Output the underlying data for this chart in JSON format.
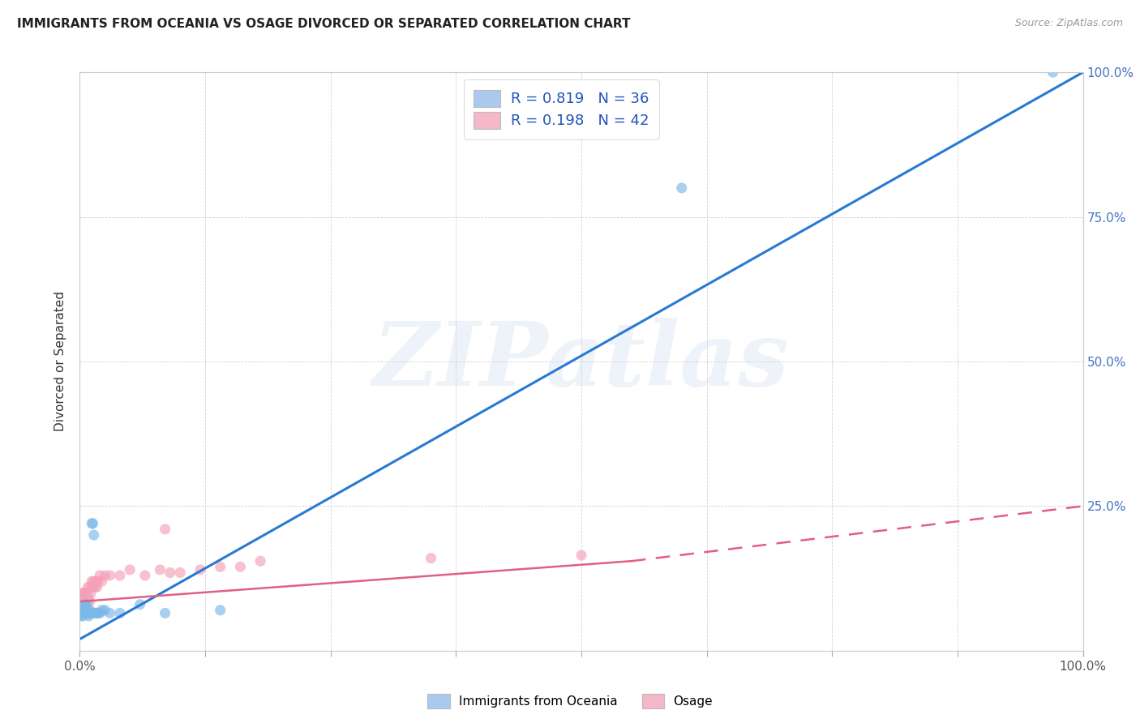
{
  "title": "IMMIGRANTS FROM OCEANIA VS OSAGE DIVORCED OR SEPARATED CORRELATION CHART",
  "source": "Source: ZipAtlas.com",
  "ylabel": "Divorced or Separated",
  "watermark_text": "ZIPatlas",
  "legend": {
    "series1_label": "R = 0.819   N = 36",
    "series2_label": "R = 0.198   N = 42",
    "series1_color": "#aac9ee",
    "series2_color": "#f4b8c8"
  },
  "series1": {
    "name": "Immigrants from Oceania",
    "scatter_color": "#7ab8e8",
    "line_color": "#2979d4",
    "x": [
      0.001,
      0.002,
      0.003,
      0.003,
      0.004,
      0.004,
      0.005,
      0.005,
      0.006,
      0.006,
      0.007,
      0.007,
      0.008,
      0.008,
      0.009,
      0.009,
      0.01,
      0.01,
      0.011,
      0.012,
      0.013,
      0.014,
      0.015,
      0.016,
      0.017,
      0.018,
      0.02,
      0.022,
      0.025,
      0.03,
      0.04,
      0.06,
      0.085,
      0.14,
      0.6,
      0.97
    ],
    "y": [
      0.06,
      0.065,
      0.06,
      0.07,
      0.065,
      0.075,
      0.07,
      0.08,
      0.07,
      0.065,
      0.08,
      0.065,
      0.065,
      0.07,
      0.065,
      0.06,
      0.07,
      0.065,
      0.065,
      0.22,
      0.22,
      0.2,
      0.065,
      0.065,
      0.065,
      0.065,
      0.065,
      0.07,
      0.07,
      0.065,
      0.065,
      0.08,
      0.065,
      0.07,
      0.8,
      1.0
    ],
    "line_x0": 0.0,
    "line_y0": 0.02,
    "line_x1": 1.0,
    "line_y1": 1.0
  },
  "series2": {
    "name": "Osage",
    "scatter_color": "#f4a0b8",
    "line_color": "#e06080",
    "x": [
      0.001,
      0.002,
      0.002,
      0.003,
      0.003,
      0.004,
      0.004,
      0.005,
      0.005,
      0.006,
      0.006,
      0.007,
      0.007,
      0.008,
      0.009,
      0.01,
      0.01,
      0.011,
      0.012,
      0.013,
      0.014,
      0.015,
      0.016,
      0.017,
      0.018,
      0.02,
      0.022,
      0.025,
      0.03,
      0.04,
      0.05,
      0.065,
      0.08,
      0.085,
      0.09,
      0.1,
      0.12,
      0.14,
      0.16,
      0.18,
      0.35,
      0.5
    ],
    "y": [
      0.09,
      0.085,
      0.095,
      0.09,
      0.1,
      0.085,
      0.1,
      0.09,
      0.1,
      0.085,
      0.1,
      0.09,
      0.1,
      0.11,
      0.09,
      0.11,
      0.085,
      0.1,
      0.12,
      0.11,
      0.12,
      0.11,
      0.12,
      0.11,
      0.12,
      0.13,
      0.12,
      0.13,
      0.13,
      0.13,
      0.14,
      0.13,
      0.14,
      0.21,
      0.135,
      0.135,
      0.14,
      0.145,
      0.145,
      0.155,
      0.16,
      0.165
    ],
    "line_x0": 0.0,
    "line_y0": 0.085,
    "line_x1": 0.55,
    "line_y1": 0.155,
    "line_dash_x0": 0.55,
    "line_dash_y0": 0.155,
    "line_dash_x1": 1.0,
    "line_dash_y1": 0.25
  },
  "ytick_positions": [
    0.0,
    0.25,
    0.5,
    0.75,
    1.0
  ],
  "ytick_labels_right": [
    "",
    "25.0%",
    "50.0%",
    "75.0%",
    "100.0%"
  ],
  "xtick_positions": [
    0.0,
    0.125,
    0.25,
    0.375,
    0.5,
    0.625,
    0.75,
    0.875,
    1.0
  ],
  "background_color": "#ffffff",
  "grid_color": "#cccccc",
  "xlim": [
    0.0,
    1.0
  ],
  "ylim": [
    0.0,
    1.0
  ]
}
